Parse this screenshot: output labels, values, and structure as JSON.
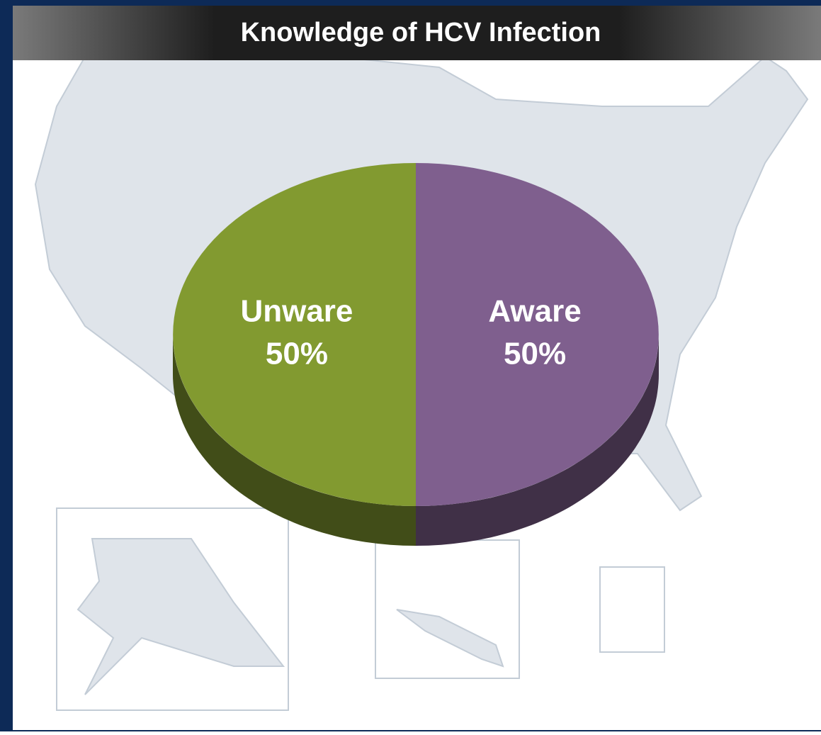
{
  "chart_data": {
    "type": "pie3d",
    "title": "Knowledge of HCV Infection",
    "categories": [
      "Unware",
      "Aware"
    ],
    "values": [
      50,
      50
    ],
    "value_labels": [
      "50%",
      "50%"
    ],
    "colors": [
      "#829a30",
      "#7f5f8e"
    ]
  }
}
